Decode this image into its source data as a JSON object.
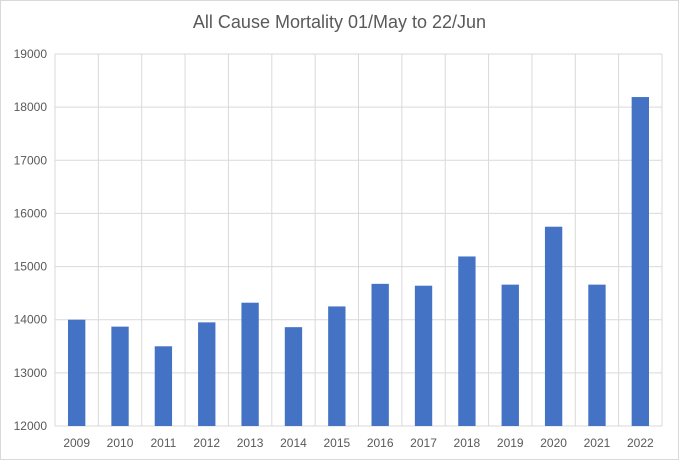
{
  "chart_data": {
    "type": "bar",
    "title": "All Cause Mortality 01/May to 22/Jun",
    "xlabel": "",
    "ylabel": "",
    "categories": [
      "2009",
      "2010",
      "2011",
      "2012",
      "2013",
      "2014",
      "2015",
      "2016",
      "2017",
      "2018",
      "2019",
      "2020",
      "2021",
      "2022"
    ],
    "values": [
      14000,
      13870,
      13500,
      13950,
      14320,
      13860,
      14250,
      14675,
      14640,
      15190,
      14660,
      15750,
      14660,
      18190
    ],
    "ylim": [
      12000,
      19000
    ],
    "yticks": [
      "12000",
      "13000",
      "14000",
      "15000",
      "16000",
      "17000",
      "18000",
      "19000"
    ],
    "grid": true,
    "legend": "none",
    "bar_color": "#4472c4"
  }
}
